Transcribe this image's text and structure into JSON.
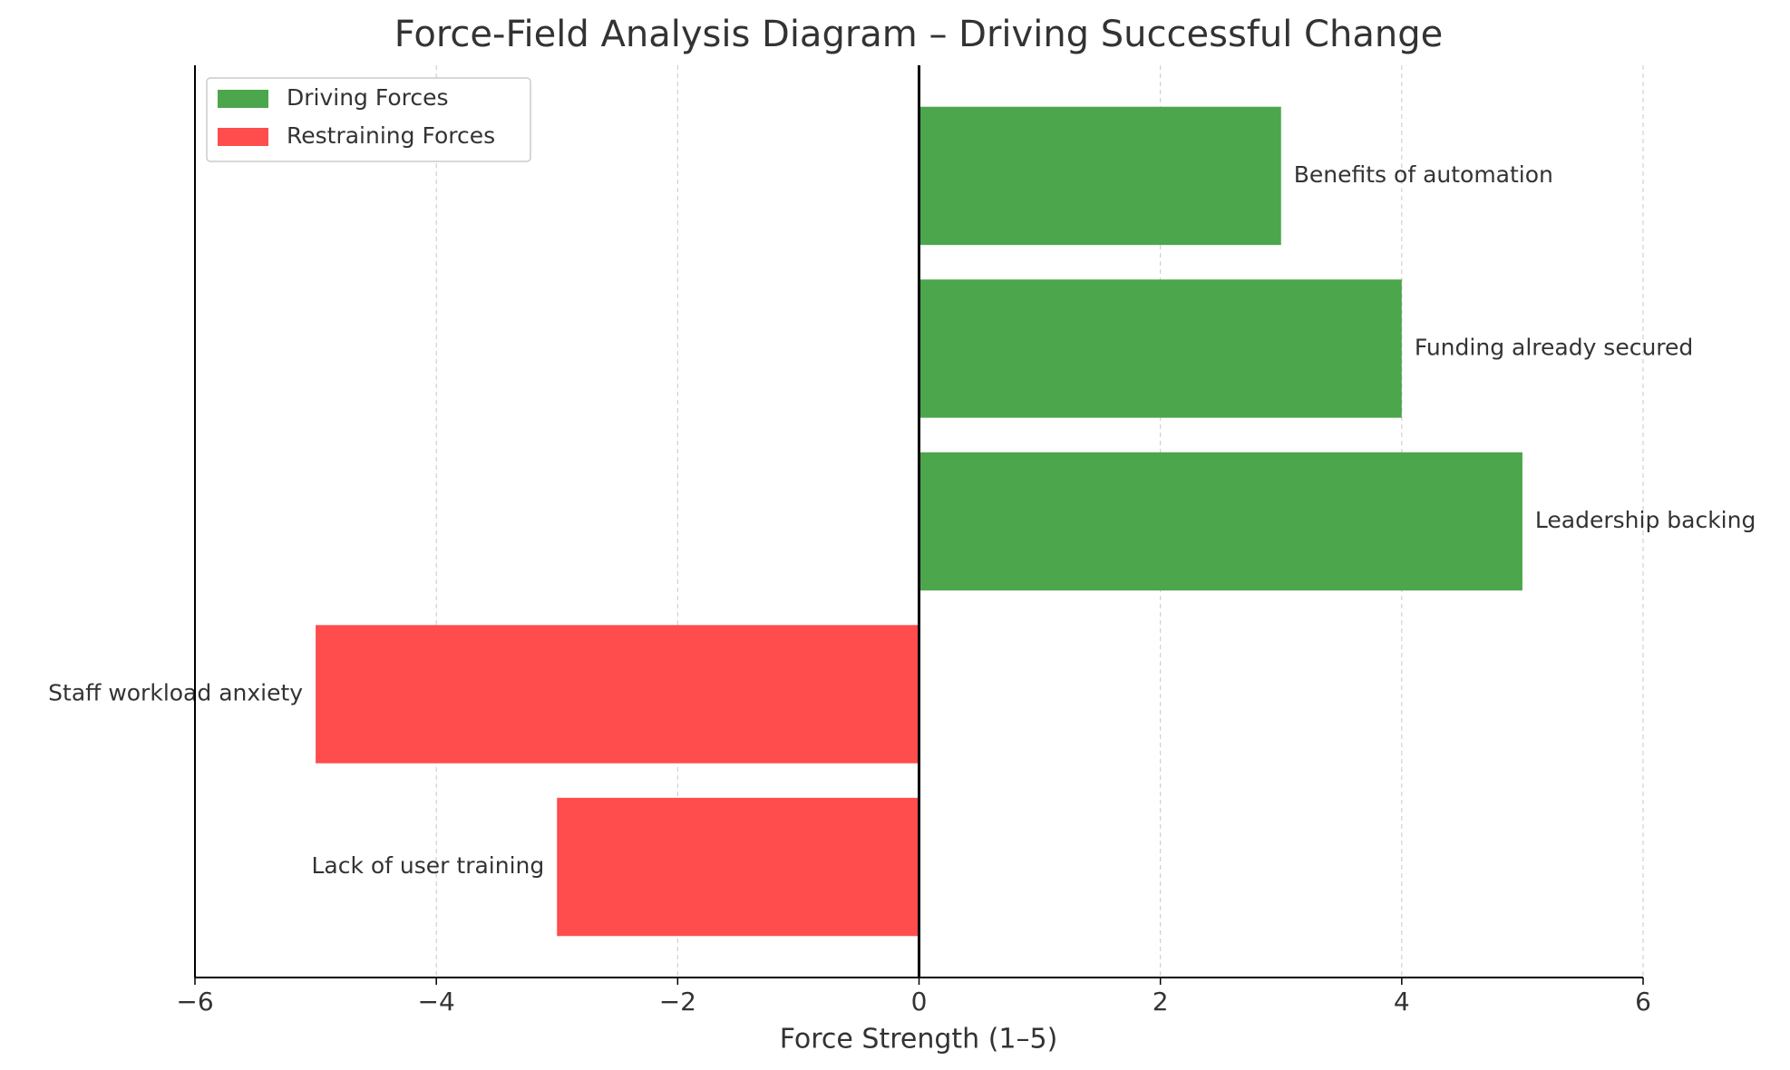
{
  "chart_data": {
    "type": "barh",
    "title": "Force-Field Analysis Diagram – Driving Successful Change",
    "x_label": "Force Strength (1–5)",
    "categories": [
      "Benefits of automation",
      "Funding already secured",
      "Leadership backing",
      "Staff workload anxiety",
      "Lack of user training"
    ],
    "series": [
      {
        "name": "Driving Forces",
        "color": "#4ca64c",
        "values": [
          3,
          4,
          5,
          null,
          null
        ]
      },
      {
        "name": "Restraining Forces",
        "color": "#ff4c4c",
        "values": [
          null,
          null,
          null,
          -5,
          -3
        ]
      }
    ],
    "xlim": [
      -6,
      6
    ],
    "xticks": [
      {
        "value": -6,
        "label": "−6"
      },
      {
        "value": -4,
        "label": "−4"
      },
      {
        "value": -2,
        "label": "−2"
      },
      0,
      2,
      4,
      6
    ],
    "grid": true,
    "legend": "upper left"
  }
}
